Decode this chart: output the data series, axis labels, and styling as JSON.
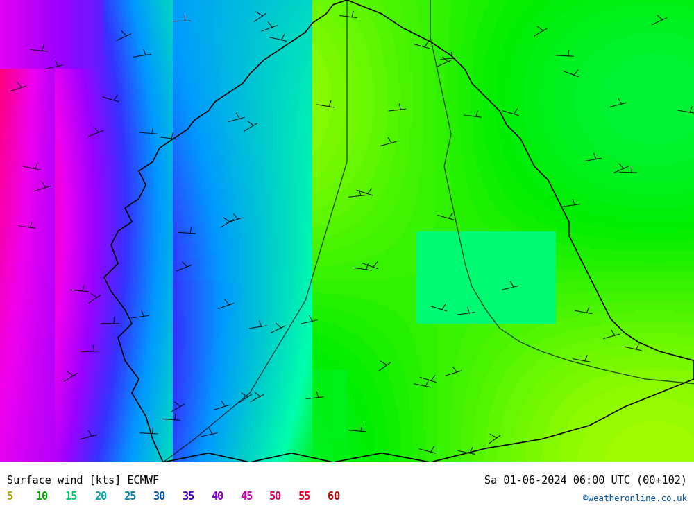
{
  "title_left": "Surface wind [kts] ECMWF",
  "title_right": "Sa 01-06-2024 06:00 UTC (00+102)",
  "credit": "©weatheronline.co.uk",
  "colorbar_values": [
    5,
    10,
    15,
    20,
    25,
    30,
    35,
    40,
    45,
    50,
    55,
    60
  ],
  "colorbar_colors": [
    "#ccff00",
    "#99ff00",
    "#00ff00",
    "#00ff99",
    "#00ffcc",
    "#00ccff",
    "#0099ff",
    "#9933ff",
    "#cc00ff",
    "#ff00cc",
    "#ff0066",
    "#ff0000"
  ],
  "colorbar_label_colors": [
    "#cccc00",
    "#99cc00",
    "#00cc00",
    "#00cc99",
    "#00cccc",
    "#0099cc",
    "#0066cc",
    "#9900ff",
    "#cc00cc",
    "#ff0099",
    "#ff0033",
    "#cc0000"
  ],
  "bg_color": "#ffffff",
  "map_bg": "#aaddff",
  "figure_width": 10.0,
  "figure_height": 7.33,
  "dpi": 100
}
